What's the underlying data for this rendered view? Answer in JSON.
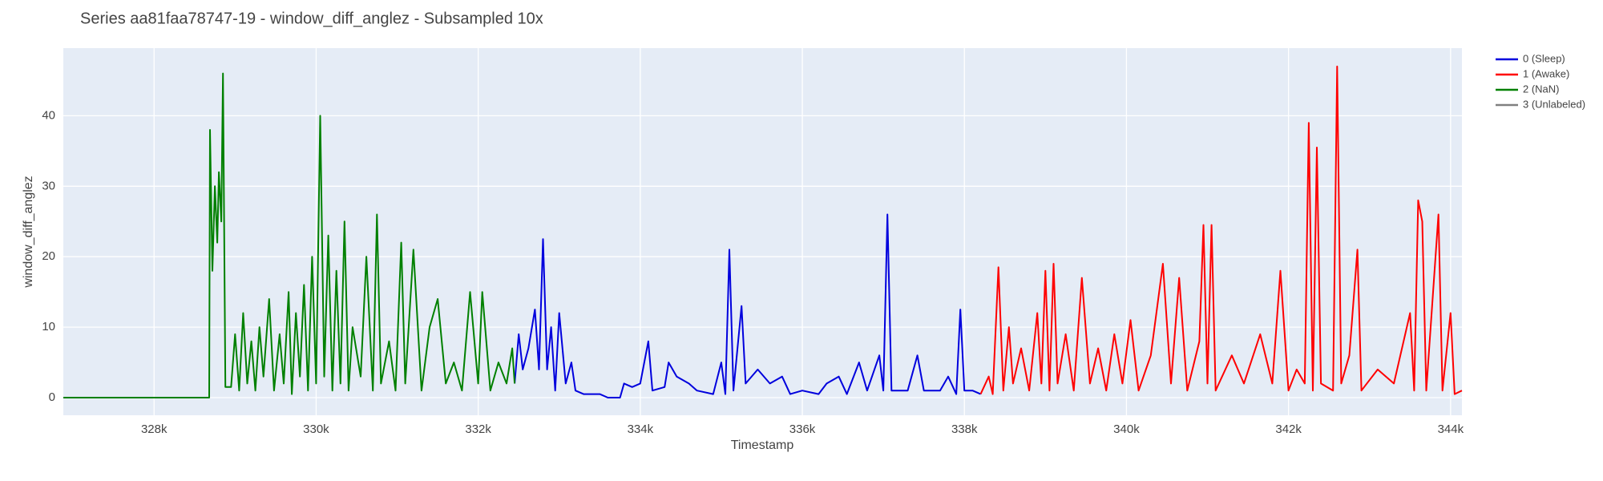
{
  "chart_data": {
    "type": "line",
    "title": "Series aa81faa78747-19 - window_diff_anglez - Subsampled 10x",
    "x_label": "Timestamp",
    "y_label": "window_diff_anglez",
    "xlim": [
      326880,
      344140
    ],
    "ylim": [
      -2.5,
      49.6
    ],
    "xticks": [
      {
        "value": 328000,
        "label": "328k"
      },
      {
        "value": 330000,
        "label": "330k"
      },
      {
        "value": 332000,
        "label": "332k"
      },
      {
        "value": 334000,
        "label": "334k"
      },
      {
        "value": 336000,
        "label": "336k"
      },
      {
        "value": 338000,
        "label": "338k"
      },
      {
        "value": 340000,
        "label": "340k"
      },
      {
        "value": 342000,
        "label": "342k"
      },
      {
        "value": 344000,
        "label": "344k"
      }
    ],
    "yticks": [
      0,
      10,
      20,
      30,
      40
    ],
    "grid": true,
    "legend": "right",
    "series": [
      {
        "name": "0 (Sleep)",
        "color": "#0000dd",
        "x": [
          332450,
          332500,
          332550,
          332620,
          332700,
          332750,
          332800,
          332850,
          332900,
          332950,
          333000,
          333080,
          333150,
          333200,
          333300,
          333500,
          333600,
          333750,
          333800,
          333900,
          334000,
          334100,
          334150,
          334300,
          334350,
          334450,
          334600,
          334700,
          334900,
          335000,
          335050,
          335100,
          335150,
          335250,
          335300,
          335450,
          335600,
          335750,
          335850,
          336000,
          336200,
          336300,
          336450,
          336550,
          336700,
          336800,
          336950,
          337000,
          337050,
          337100,
          337300,
          337420,
          337500,
          337700,
          337800,
          337900,
          337950,
          338000,
          338100,
          338200
        ],
        "values": [
          2,
          9,
          4,
          7,
          12.5,
          4,
          22.5,
          4,
          10,
          1,
          12,
          2,
          5,
          1,
          0.5,
          0.5,
          0,
          0,
          2,
          1.5,
          2,
          8,
          1,
          1.5,
          5,
          3,
          2,
          1,
          0.5,
          5,
          0.5,
          21,
          1,
          13,
          2,
          4,
          2,
          3,
          0.5,
          1,
          0.5,
          2,
          3,
          0.5,
          5,
          1,
          6,
          1,
          26,
          1,
          1,
          6,
          1,
          1,
          3,
          0.5,
          12.5,
          1,
          1,
          0.5
        ]
      },
      {
        "name": "1 (Awake)",
        "color": "#ff0000",
        "x": [
          338200,
          338300,
          338350,
          338420,
          338480,
          338550,
          338600,
          338700,
          338800,
          338900,
          338950,
          339000,
          339050,
          339100,
          339150,
          339250,
          339350,
          339450,
          339550,
          339650,
          339750,
          339850,
          339950,
          340050,
          340150,
          340300,
          340450,
          340550,
          340650,
          340750,
          340900,
          340950,
          341000,
          341050,
          341100,
          341300,
          341450,
          341650,
          341800,
          341900,
          342000,
          342100,
          342200,
          342250,
          342300,
          342350,
          342400,
          342550,
          342600,
          342650,
          342750,
          342850,
          342900,
          343100,
          343300,
          343500,
          343550,
          343600,
          343650,
          343700,
          343850,
          343900,
          344000,
          344050,
          344140
        ],
        "values": [
          0.5,
          3,
          0.5,
          18.5,
          1,
          10,
          2,
          7,
          1,
          12,
          2,
          18,
          1,
          19,
          2,
          9,
          1,
          17,
          2,
          7,
          1,
          9,
          2,
          11,
          1,
          6,
          19,
          2,
          17,
          1,
          8,
          24.5,
          2,
          24.5,
          1,
          6,
          2,
          9,
          2,
          18,
          1,
          4,
          2,
          39,
          1,
          35.5,
          2,
          1,
          47,
          2,
          6,
          21,
          1,
          4,
          2,
          12,
          1,
          28,
          25,
          1,
          26,
          1,
          12,
          0.5,
          1
        ]
      },
      {
        "name": "2 (NaN)",
        "color": "#008000",
        "x": [
          326880,
          328680,
          328690,
          328720,
          328750,
          328780,
          328800,
          328830,
          328850,
          328880,
          328950,
          329000,
          329050,
          329100,
          329150,
          329200,
          329250,
          329300,
          329350,
          329420,
          329480,
          329550,
          329600,
          329660,
          329700,
          329750,
          329800,
          329850,
          329900,
          329950,
          330000,
          330050,
          330100,
          330150,
          330200,
          330250,
          330300,
          330350,
          330400,
          330450,
          330550,
          330620,
          330700,
          330750,
          330800,
          330900,
          330980,
          331050,
          331100,
          331200,
          331300,
          331400,
          331500,
          331600,
          331700,
          331800,
          331900,
          332000,
          332050,
          332150,
          332250,
          332350,
          332420,
          332450
        ],
        "values": [
          0,
          0,
          38,
          18,
          30,
          22,
          32,
          25,
          46,
          1.5,
          1.5,
          9,
          1,
          12,
          2,
          8,
          1,
          10,
          3,
          14,
          1,
          9,
          2,
          15,
          0.5,
          12,
          3,
          16,
          1,
          20,
          2,
          40,
          3,
          23,
          1,
          18,
          2,
          25,
          1,
          10,
          3,
          20,
          1,
          26,
          2,
          8,
          1,
          22,
          2,
          21,
          1,
          10,
          14,
          2,
          5,
          1,
          15,
          2,
          15,
          1,
          5,
          2,
          7,
          2
        ]
      },
      {
        "name": "3 (Unlabeled)",
        "color": "#808080",
        "x": [],
        "values": []
      }
    ]
  }
}
